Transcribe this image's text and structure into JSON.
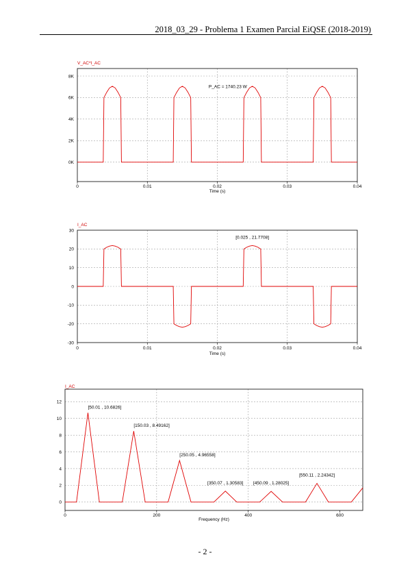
{
  "header": {
    "title": "2018_03_29 - Problema 1 Examen Parcial EiQSE (2018-2019)"
  },
  "footer": {
    "page_number": "- 2 -"
  },
  "chart_data": [
    {
      "type": "line",
      "title": "V_AC*I_AC",
      "xlabel": "Time (s)",
      "ylabel": "",
      "xlim": [
        0,
        0.04
      ],
      "ylim": [
        -1800,
        8700
      ],
      "x_ticks": [
        0,
        0.01,
        0.02,
        0.03,
        0.04
      ],
      "x_tick_labels": [
        "0",
        "0.01",
        "0.02",
        "0.03",
        "0.04"
      ],
      "y_ticks": [
        0,
        2000,
        4000,
        6000,
        8000
      ],
      "y_tick_labels": [
        "0K",
        "2K",
        "4K",
        "6K",
        "8K"
      ],
      "grid": true,
      "line_color": "#e00000",
      "series": [
        {
          "x": [
            0,
            0.0037,
            0.0038,
            0.0042,
            0.0046,
            0.005,
            0.0054,
            0.0058,
            0.0062,
            0.0063,
            0.0137,
            0.0138,
            0.0142,
            0.0146,
            0.015,
            0.0154,
            0.0158,
            0.0162,
            0.0163,
            0.0237,
            0.0238,
            0.0242,
            0.0246,
            0.025,
            0.0254,
            0.0258,
            0.0262,
            0.0263,
            0.0337,
            0.0338,
            0.0342,
            0.0346,
            0.035,
            0.0354,
            0.0358,
            0.0362,
            0.0363,
            0.04
          ],
          "y": [
            0,
            0,
            6000,
            6500,
            6900,
            7050,
            6900,
            6500,
            6000,
            0,
            0,
            6000,
            6500,
            6900,
            7050,
            6900,
            6500,
            6000,
            0,
            0,
            6000,
            6500,
            6900,
            7050,
            6900,
            6500,
            6000,
            0,
            0,
            6000,
            6500,
            6900,
            7050,
            6900,
            6500,
            6000,
            0,
            0
          ]
        }
      ],
      "annotations": [
        {
          "text": "P_AC = 1740.23 W"
        }
      ]
    },
    {
      "type": "line",
      "title": "I_AC",
      "xlabel": "Time (s)",
      "ylabel": "",
      "xlim": [
        0,
        0.04
      ],
      "ylim": [
        -30,
        30
      ],
      "x_ticks": [
        0,
        0.01,
        0.02,
        0.03,
        0.04
      ],
      "x_tick_labels": [
        "0",
        "0.01",
        "0.02",
        "0.03",
        "0.04"
      ],
      "y_ticks": [
        -30,
        -20,
        -10,
        0,
        10,
        20,
        30
      ],
      "y_tick_labels": [
        "-30",
        "-20",
        "-10",
        "0",
        "10",
        "20",
        "30"
      ],
      "grid": true,
      "line_color": "#e00000",
      "series": [
        {
          "x": [
            0,
            0.0037,
            0.0038,
            0.0042,
            0.0046,
            0.005,
            0.0054,
            0.0058,
            0.0062,
            0.0063,
            0.0137,
            0.0138,
            0.0142,
            0.0146,
            0.015,
            0.0154,
            0.0158,
            0.0162,
            0.0163,
            0.0237,
            0.0238,
            0.0242,
            0.0246,
            0.025,
            0.0254,
            0.0258,
            0.0262,
            0.0263,
            0.0337,
            0.0338,
            0.0342,
            0.0346,
            0.035,
            0.0354,
            0.0358,
            0.0362,
            0.0363,
            0.04
          ],
          "y": [
            0,
            0,
            20,
            20.9,
            21.5,
            21.78,
            21.5,
            20.9,
            20,
            0,
            0,
            -20,
            -20.9,
            -21.5,
            -21.78,
            -21.5,
            -20.9,
            -20,
            0,
            0,
            20,
            20.9,
            21.5,
            21.78,
            21.5,
            20.9,
            20,
            0,
            0,
            -20,
            -20.9,
            -21.5,
            -21.78,
            -21.5,
            -20.9,
            -20,
            0,
            0
          ]
        }
      ],
      "annotations": [
        {
          "text": "[0.025 , 21.7708]"
        }
      ]
    },
    {
      "type": "line",
      "title": "I_AC",
      "xlabel": "Frequency (Hz)",
      "ylabel": "",
      "xlim": [
        0,
        650
      ],
      "ylim": [
        -1,
        13.5
      ],
      "x_ticks": [
        0,
        200,
        400,
        600
      ],
      "x_tick_labels": [
        "0",
        "200",
        "400",
        "600"
      ],
      "y_ticks": [
        0,
        2,
        4,
        6,
        8,
        10,
        12
      ],
      "y_tick_labels": [
        "0",
        "2",
        "4",
        "6",
        "8",
        "10",
        "12"
      ],
      "grid": true,
      "line_color": "#e00000",
      "series": [
        {
          "x": [
            0,
            25,
            50,
            75,
            125,
            150,
            175,
            225,
            250,
            275,
            325,
            350,
            375,
            425,
            450,
            475,
            525,
            550,
            575,
            625,
            650
          ],
          "y": [
            0,
            0,
            10.68,
            0,
            0,
            8.49,
            0,
            0,
            4.97,
            0,
            0,
            1.31,
            0,
            0,
            1.28,
            0,
            0,
            2.24,
            0,
            0,
            1.7
          ]
        }
      ],
      "annotations": [
        {
          "text": "[50.01 , 10.6826]"
        },
        {
          "text": "[150.03 , 8.49162]"
        },
        {
          "text": "[250.05 , 4.96558]"
        },
        {
          "text": "[350.07 , 1.30583]"
        },
        {
          "text": "[450.09 , 1.28025]"
        },
        {
          "text": "[550.11 , 2.24342]"
        }
      ]
    }
  ]
}
